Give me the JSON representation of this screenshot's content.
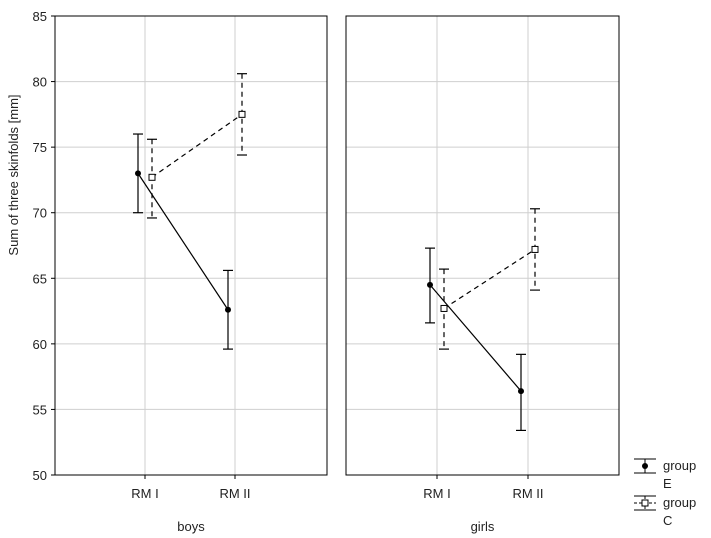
{
  "chart_data": {
    "type": "line",
    "ylabel": "Sum of three skinfolds [mm]",
    "ylim": [
      50,
      85
    ],
    "yticks": [
      50,
      55,
      60,
      65,
      70,
      75,
      80,
      85
    ],
    "grid": true,
    "legend_position": "bottom-right",
    "panels": [
      {
        "label": "boys",
        "categories": [
          "RM I",
          "RM II"
        ],
        "series": [
          {
            "name": "group E",
            "values": [
              73.0,
              62.6
            ],
            "error_low": [
              70.0,
              59.6
            ],
            "error_high": [
              76.0,
              65.6
            ]
          },
          {
            "name": "group C",
            "values": [
              72.7,
              77.5
            ],
            "error_low": [
              69.6,
              74.4
            ],
            "error_high": [
              75.6,
              80.6
            ]
          }
        ]
      },
      {
        "label": "girls",
        "categories": [
          "RM I",
          "RM II"
        ],
        "series": [
          {
            "name": "group E",
            "values": [
              64.5,
              56.4
            ],
            "error_low": [
              61.6,
              53.4
            ],
            "error_high": [
              67.3,
              59.2
            ]
          },
          {
            "name": "group C",
            "values": [
              62.7,
              67.2
            ],
            "error_low": [
              59.6,
              64.1
            ],
            "error_high": [
              65.7,
              70.3
            ]
          }
        ]
      }
    ],
    "legend": [
      {
        "line1": "group",
        "line2": "E",
        "series": "group E"
      },
      {
        "line1": "group",
        "line2": "C",
        "series": "group C"
      }
    ]
  }
}
